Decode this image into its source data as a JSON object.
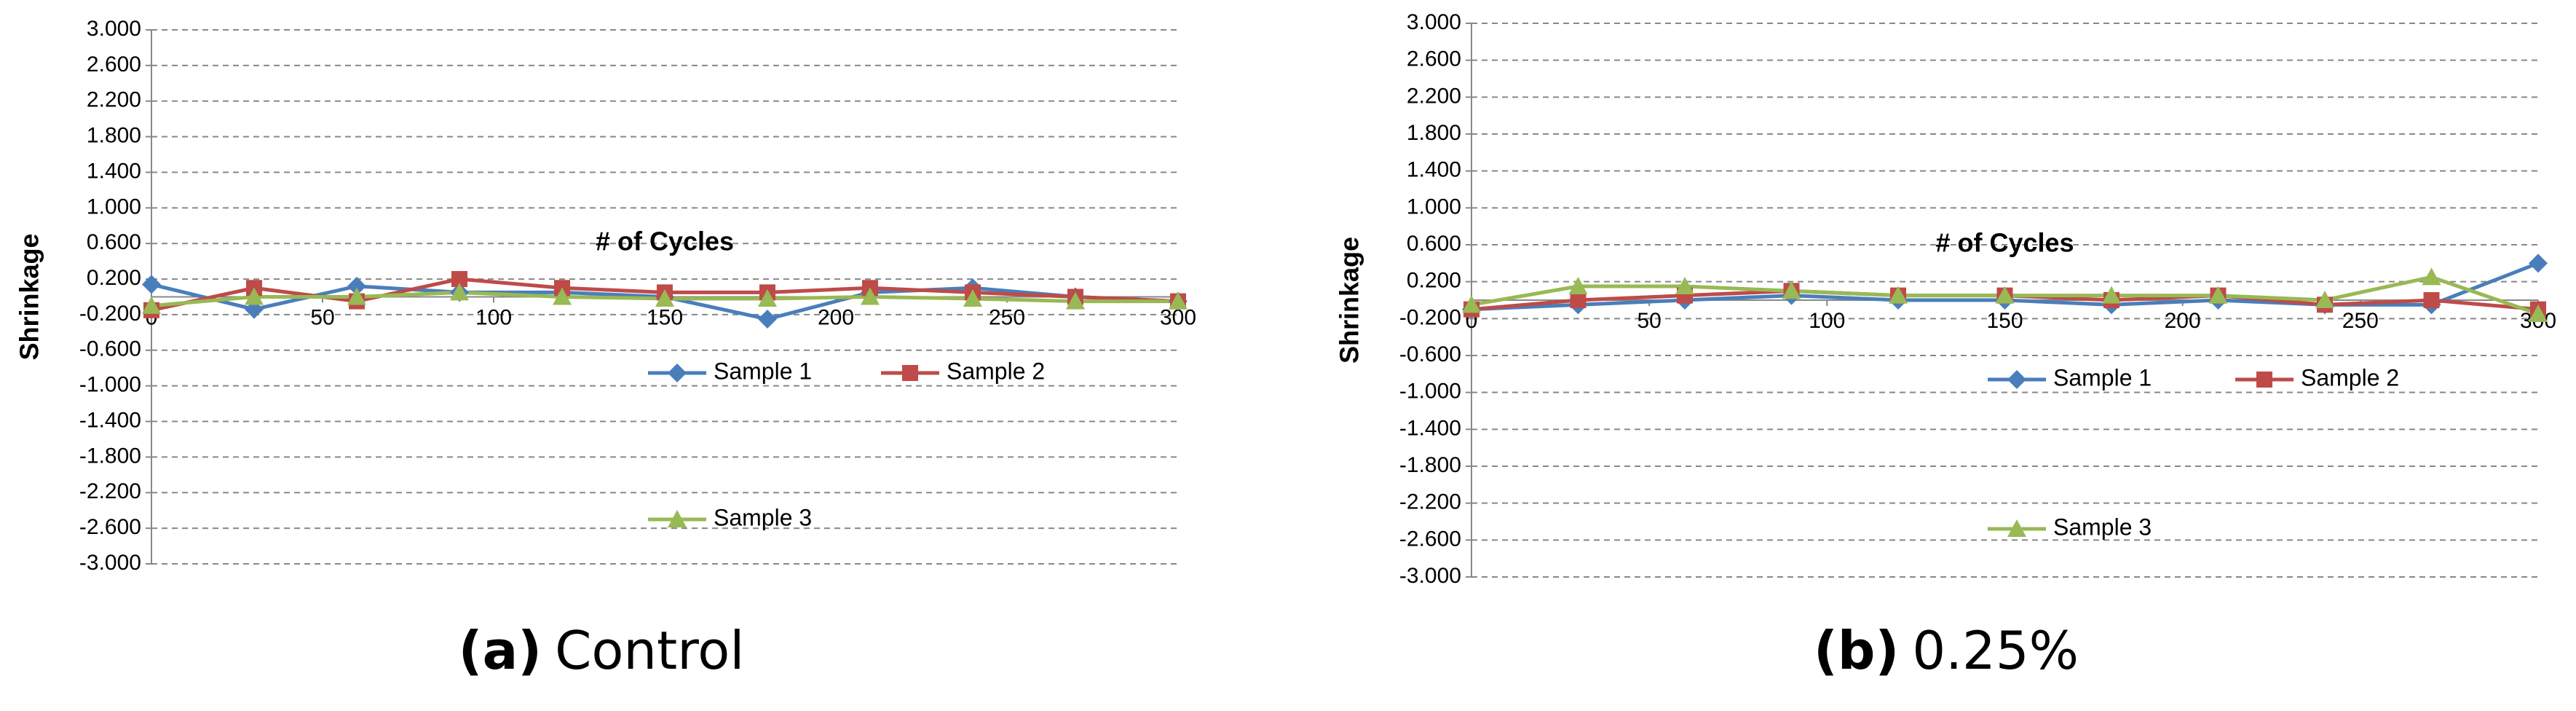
{
  "chart_data": [
    {
      "type": "line",
      "subfigure": "(a)",
      "caption": "Control",
      "x_label": "# of Cycles",
      "y_label": "Shrinkage",
      "x": [
        0,
        30,
        60,
        90,
        120,
        150,
        180,
        210,
        240,
        270,
        300
      ],
      "series": [
        {
          "name": "Sample 1",
          "color": "#4a7ebb",
          "marker": "diamond",
          "values": [
            0.14,
            -0.14,
            0.12,
            0.05,
            0.05,
            0.0,
            -0.25,
            0.05,
            0.1,
            0.0,
            -0.05
          ]
        },
        {
          "name": "Sample 2",
          "color": "#be4b48",
          "marker": "square",
          "values": [
            -0.15,
            0.1,
            -0.05,
            0.2,
            0.1,
            0.05,
            0.05,
            0.1,
            0.05,
            0.0,
            -0.05
          ]
        },
        {
          "name": "Sample 3",
          "color": "#98b954",
          "marker": "triangle",
          "values": [
            -0.1,
            0.0,
            0.0,
            0.05,
            0.0,
            -0.02,
            -0.02,
            0.0,
            -0.02,
            -0.05,
            -0.05
          ]
        }
      ],
      "xlim": [
        0,
        300
      ],
      "xticks": [
        0,
        50,
        100,
        150,
        200,
        250,
        300
      ],
      "ylim": [
        -3,
        3
      ],
      "yticks": [
        {
          "value": 3,
          "label": "3.000"
        },
        {
          "value": 2.6,
          "label": "2.600"
        },
        {
          "value": 2.2,
          "label": "2.200"
        },
        {
          "value": 1.8,
          "label": "1.800"
        },
        {
          "value": 1.4,
          "label": "1.400"
        },
        {
          "value": 1,
          "label": "1.000"
        },
        {
          "value": 0.6,
          "label": "0.600"
        },
        {
          "value": 0.2,
          "label": "0.200"
        },
        {
          "value": -0.2,
          "label": "-0.200"
        },
        {
          "value": -0.6,
          "label": "-0.600"
        },
        {
          "value": -1,
          "label": "-1.000"
        },
        {
          "value": -1.4,
          "label": "-1.400"
        },
        {
          "value": -1.8,
          "label": "-1.800"
        },
        {
          "value": -2.2,
          "label": "-2.200"
        },
        {
          "value": -2.6,
          "label": "-2.600"
        },
        {
          "value": -3,
          "label": "-3.000"
        }
      ],
      "grid": true
    },
    {
      "type": "line",
      "subfigure": "(b)",
      "caption": "0.25%",
      "x_label": "# of Cycles",
      "y_label": "Shrinkage",
      "x": [
        0,
        30,
        60,
        90,
        120,
        150,
        180,
        210,
        240,
        270,
        300
      ],
      "series": [
        {
          "name": "Sample 1",
          "color": "#4a7ebb",
          "marker": "diamond",
          "values": [
            -0.1,
            -0.05,
            0.0,
            0.05,
            0.0,
            0.0,
            -0.05,
            0.0,
            -0.05,
            -0.05,
            0.4
          ]
        },
        {
          "name": "Sample 2",
          "color": "#be4b48",
          "marker": "square",
          "values": [
            -0.1,
            0.0,
            0.05,
            0.1,
            0.05,
            0.05,
            0.0,
            0.05,
            -0.05,
            0.0,
            -0.1
          ]
        },
        {
          "name": "Sample 3",
          "color": "#98b954",
          "marker": "triangle",
          "values": [
            -0.05,
            0.15,
            0.15,
            0.1,
            0.05,
            0.05,
            0.05,
            0.05,
            0.0,
            0.25,
            -0.15
          ]
        }
      ],
      "xlim": [
        0,
        300
      ],
      "xticks": [
        0,
        50,
        100,
        150,
        200,
        250,
        300
      ],
      "ylim": [
        -3,
        3
      ],
      "yticks": [
        {
          "value": 3,
          "label": "3.000"
        },
        {
          "value": 2.6,
          "label": "2.600"
        },
        {
          "value": 2.2,
          "label": "2.200"
        },
        {
          "value": 1.8,
          "label": "1.800"
        },
        {
          "value": 1.4,
          "label": "1.400"
        },
        {
          "value": 1,
          "label": "1.000"
        },
        {
          "value": 0.6,
          "label": "0.600"
        },
        {
          "value": 0.2,
          "label": "0.200"
        },
        {
          "value": -0.2,
          "label": "-0.200"
        },
        {
          "value": -0.6,
          "label": "-0.600"
        },
        {
          "value": -1,
          "label": "-1.000"
        },
        {
          "value": -1.4,
          "label": "-1.400"
        },
        {
          "value": -1.8,
          "label": "-1.800"
        },
        {
          "value": -2.2,
          "label": "-2.200"
        },
        {
          "value": -2.6,
          "label": "-2.600"
        },
        {
          "value": -3,
          "label": "-3.000"
        }
      ],
      "grid": true
    }
  ]
}
